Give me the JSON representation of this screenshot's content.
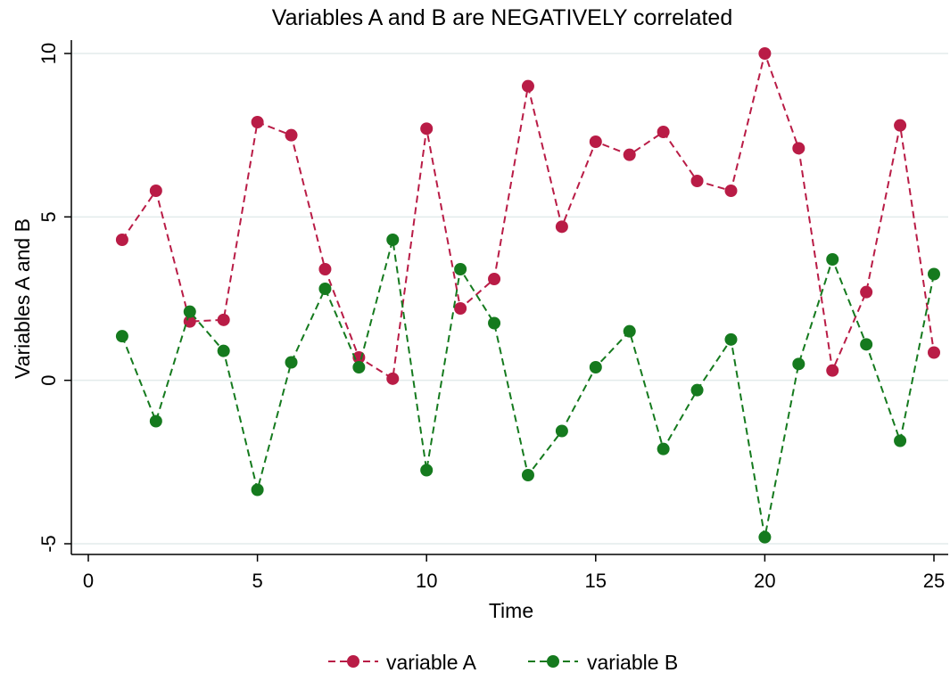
{
  "chart_data": {
    "type": "line",
    "title": "Variables A and B are NEGATIVELY correlated",
    "xlabel": "Time",
    "ylabel": "Variables A and B",
    "xlim": [
      0,
      25
    ],
    "ylim": [
      -5,
      10
    ],
    "x_ticks": [
      "0",
      "5",
      "10",
      "15",
      "20",
      "25"
    ],
    "y_ticks": [
      "-5",
      "0",
      "5",
      "10"
    ],
    "grid": "horizontal",
    "legend_position": "bottom",
    "x": [
      1,
      2,
      3,
      4,
      5,
      6,
      7,
      8,
      9,
      10,
      11,
      12,
      13,
      14,
      15,
      16,
      17,
      18,
      19,
      20,
      21,
      22,
      23,
      24,
      25
    ],
    "series": [
      {
        "name": "variable A",
        "color": "#b91c46",
        "line_style": "dashed",
        "marker": "circle",
        "values": [
          4.3,
          5.8,
          1.8,
          1.85,
          7.9,
          7.5,
          3.4,
          0.7,
          0.05,
          7.7,
          2.2,
          3.1,
          9.0,
          4.7,
          7.3,
          6.9,
          7.6,
          6.1,
          5.8,
          10.0,
          7.1,
          0.3,
          2.7,
          7.8,
          0.85
        ]
      },
      {
        "name": "variable B",
        "color": "#157a1e",
        "line_style": "dashed",
        "marker": "circle",
        "values": [
          1.35,
          -1.25,
          2.1,
          0.9,
          -3.35,
          0.55,
          2.8,
          0.4,
          4.3,
          -2.75,
          3.4,
          1.75,
          -2.9,
          -1.55,
          0.4,
          1.5,
          -2.1,
          -0.3,
          1.25,
          -4.8,
          0.5,
          3.7,
          1.1,
          -1.85,
          3.25
        ]
      }
    ]
  }
}
